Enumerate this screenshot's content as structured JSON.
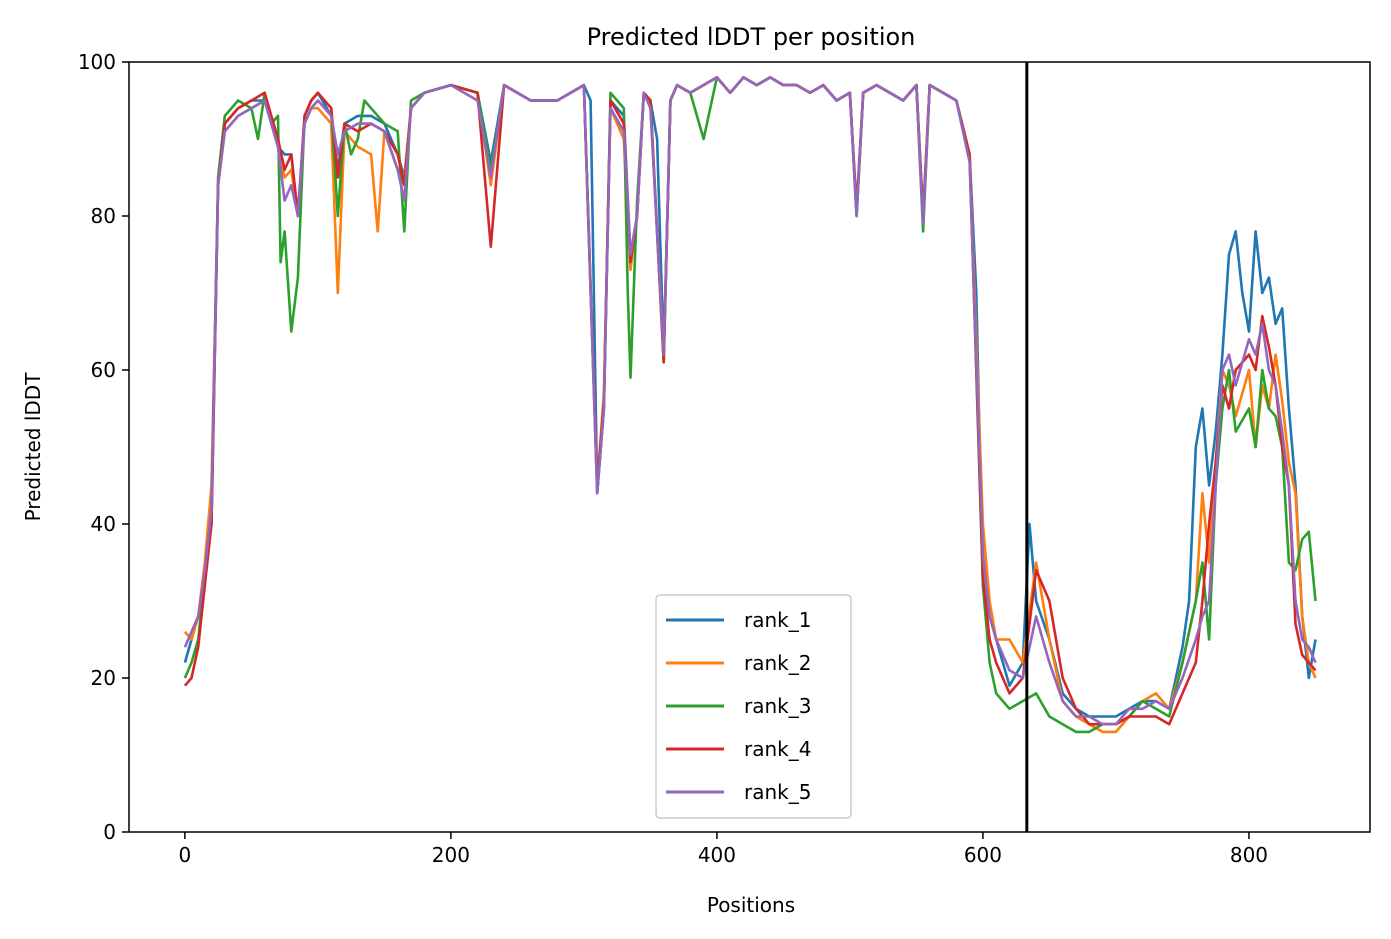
{
  "chart_data": {
    "type": "line",
    "title": "Predicted lDDT per position",
    "xlabel": "Positions",
    "ylabel": "Predicted lDDT",
    "xlim": [
      -42,
      891
    ],
    "ylim": [
      0,
      100
    ],
    "xticks": [
      0,
      200,
      400,
      600,
      800
    ],
    "yticks": [
      0,
      20,
      40,
      60,
      80,
      100
    ],
    "grid": false,
    "legend_position": "lower center",
    "vertical_line_x": 633,
    "series": [
      {
        "name": "rank_1",
        "color": "#1f77b4",
        "x": [
          0,
          5,
          10,
          15,
          20,
          25,
          30,
          40,
          50,
          60,
          70,
          75,
          80,
          85,
          90,
          95,
          100,
          110,
          115,
          120,
          130,
          140,
          150,
          160,
          165,
          170,
          180,
          200,
          220,
          230,
          240,
          260,
          280,
          300,
          305,
          310,
          315,
          320,
          330,
          335,
          340,
          345,
          350,
          355,
          360,
          365,
          370,
          380,
          400,
          410,
          420,
          430,
          440,
          450,
          460,
          470,
          480,
          490,
          500,
          505,
          510,
          520,
          530,
          540,
          550,
          555,
          560,
          570,
          580,
          590,
          595,
          600,
          605,
          610,
          620,
          630,
          635,
          640,
          650,
          660,
          670,
          680,
          690,
          700,
          710,
          720,
          730,
          740,
          750,
          755,
          760,
          765,
          770,
          775,
          780,
          785,
          790,
          795,
          800,
          805,
          810,
          815,
          820,
          825,
          830,
          835,
          840,
          845,
          850
        ],
        "y": [
          22,
          25,
          28,
          33,
          40,
          84,
          92,
          94,
          95,
          95,
          89,
          88,
          88,
          80,
          93,
          95,
          96,
          93,
          86,
          92,
          93,
          93,
          92,
          88,
          85,
          94,
          96,
          97,
          96,
          87,
          97,
          95,
          95,
          97,
          95,
          44,
          55,
          95,
          93,
          75,
          80,
          96,
          95,
          90,
          62,
          95,
          97,
          96,
          98,
          96,
          98,
          97,
          98,
          97,
          97,
          96,
          97,
          95,
          96,
          80,
          96,
          97,
          96,
          95,
          97,
          80,
          97,
          96,
          95,
          88,
          70,
          32,
          28,
          25,
          19,
          22,
          40,
          30,
          25,
          18,
          16,
          15,
          15,
          15,
          16,
          17,
          17,
          16,
          24,
          30,
          50,
          55,
          45,
          52,
          62,
          75,
          78,
          70,
          65,
          78,
          70,
          72,
          66,
          68,
          55,
          45,
          28,
          20,
          25
        ]
      },
      {
        "name": "rank_2",
        "color": "#ff7f0e",
        "x": [
          0,
          5,
          10,
          15,
          20,
          25,
          30,
          40,
          50,
          60,
          70,
          75,
          80,
          85,
          90,
          95,
          100,
          110,
          115,
          120,
          130,
          140,
          145,
          150,
          160,
          165,
          170,
          180,
          200,
          220,
          230,
          240,
          260,
          280,
          300,
          310,
          315,
          320,
          330,
          335,
          340,
          345,
          350,
          360,
          365,
          370,
          380,
          400,
          410,
          420,
          430,
          440,
          450,
          460,
          470,
          480,
          490,
          500,
          505,
          510,
          520,
          530,
          540,
          550,
          555,
          560,
          570,
          580,
          590,
          600,
          605,
          610,
          620,
          630,
          640,
          650,
          660,
          670,
          680,
          690,
          700,
          710,
          720,
          730,
          740,
          750,
          760,
          765,
          770,
          775,
          780,
          785,
          790,
          800,
          805,
          810,
          815,
          820,
          825,
          830,
          835,
          840,
          845,
          850
        ],
        "y": [
          26,
          25,
          28,
          35,
          45,
          84,
          91,
          93,
          94,
          95,
          89,
          85,
          86,
          80,
          92,
          94,
          94,
          92,
          70,
          91,
          89,
          88,
          78,
          91,
          86,
          85,
          94,
          96,
          97,
          96,
          84,
          97,
          95,
          95,
          97,
          45,
          57,
          94,
          90,
          73,
          80,
          96,
          95,
          62,
          95,
          97,
          96,
          98,
          96,
          98,
          97,
          98,
          97,
          97,
          96,
          97,
          95,
          96,
          81,
          96,
          97,
          96,
          95,
          97,
          80,
          97,
          96,
          95,
          88,
          40,
          30,
          25,
          25,
          22,
          35,
          25,
          17,
          15,
          14,
          13,
          13,
          15,
          17,
          18,
          16,
          22,
          30,
          44,
          35,
          48,
          60,
          58,
          54,
          60,
          50,
          58,
          55,
          62,
          56,
          48,
          44,
          28,
          22,
          20
        ]
      },
      {
        "name": "rank_3",
        "color": "#2ca02c",
        "x": [
          0,
          5,
          10,
          15,
          20,
          25,
          30,
          40,
          50,
          55,
          60,
          65,
          70,
          72,
          75,
          80,
          85,
          90,
          95,
          100,
          110,
          115,
          120,
          125,
          130,
          135,
          140,
          150,
          160,
          165,
          170,
          180,
          200,
          220,
          230,
          240,
          260,
          280,
          300,
          310,
          315,
          320,
          330,
          333,
          335,
          340,
          345,
          350,
          360,
          365,
          370,
          380,
          390,
          400,
          410,
          420,
          430,
          440,
          450,
          460,
          470,
          480,
          490,
          500,
          505,
          510,
          520,
          530,
          540,
          550,
          555,
          560,
          570,
          580,
          590,
          600,
          605,
          610,
          620,
          630,
          640,
          650,
          660,
          670,
          680,
          690,
          700,
          710,
          720,
          730,
          740,
          750,
          760,
          765,
          770,
          775,
          780,
          785,
          790,
          800,
          805,
          810,
          815,
          820,
          825,
          830,
          835,
          840,
          845,
          850
        ],
        "y": [
          20,
          22,
          25,
          33,
          42,
          85,
          93,
          95,
          94,
          90,
          96,
          92,
          93,
          74,
          78,
          65,
          72,
          93,
          95,
          96,
          94,
          80,
          92,
          88,
          90,
          95,
          94,
          92,
          91,
          78,
          95,
          96,
          97,
          96,
          86,
          97,
          95,
          95,
          97,
          44,
          55,
          96,
          94,
          70,
          59,
          82,
          96,
          95,
          61,
          95,
          97,
          96,
          90,
          98,
          96,
          98,
          97,
          98,
          97,
          97,
          96,
          97,
          95,
          96,
          80,
          96,
          97,
          96,
          95,
          97,
          78,
          97,
          96,
          95,
          88,
          32,
          22,
          18,
          16,
          17,
          18,
          15,
          14,
          13,
          13,
          14,
          14,
          15,
          17,
          16,
          15,
          22,
          30,
          35,
          25,
          45,
          55,
          60,
          52,
          55,
          50,
          60,
          55,
          54,
          50,
          35,
          34,
          38,
          39,
          30
        ]
      },
      {
        "name": "rank_4",
        "color": "#d62728",
        "x": [
          0,
          5,
          10,
          15,
          20,
          25,
          30,
          40,
          50,
          60,
          70,
          75,
          80,
          85,
          90,
          95,
          100,
          110,
          115,
          120,
          130,
          140,
          150,
          160,
          165,
          170,
          180,
          200,
          220,
          230,
          240,
          260,
          280,
          300,
          310,
          315,
          320,
          330,
          335,
          340,
          345,
          350,
          360,
          365,
          370,
          380,
          400,
          410,
          420,
          430,
          440,
          450,
          460,
          470,
          480,
          490,
          500,
          505,
          510,
          520,
          530,
          540,
          550,
          555,
          560,
          570,
          580,
          590,
          600,
          605,
          610,
          620,
          630,
          640,
          645,
          650,
          660,
          670,
          680,
          690,
          700,
          710,
          720,
          730,
          740,
          750,
          760,
          765,
          770,
          775,
          780,
          785,
          790,
          800,
          805,
          810,
          815,
          820,
          825,
          830,
          835,
          840,
          845,
          850
        ],
        "y": [
          19,
          20,
          24,
          32,
          40,
          84,
          92,
          94,
          95,
          96,
          90,
          86,
          88,
          80,
          93,
          95,
          96,
          94,
          85,
          92,
          91,
          92,
          91,
          88,
          84,
          94,
          96,
          97,
          96,
          76,
          97,
          95,
          95,
          97,
          45,
          56,
          95,
          92,
          74,
          80,
          96,
          95,
          61,
          95,
          97,
          96,
          98,
          96,
          98,
          97,
          98,
          97,
          97,
          96,
          97,
          95,
          96,
          81,
          96,
          97,
          96,
          95,
          97,
          80,
          97,
          96,
          95,
          88,
          33,
          25,
          22,
          18,
          20,
          34,
          32,
          30,
          20,
          16,
          14,
          14,
          14,
          15,
          15,
          15,
          14,
          18,
          22,
          30,
          40,
          48,
          58,
          55,
          60,
          62,
          60,
          67,
          63,
          58,
          50,
          45,
          27,
          23,
          22,
          21
        ]
      },
      {
        "name": "rank_5",
        "color": "#9467bd",
        "x": [
          0,
          5,
          10,
          15,
          20,
          25,
          30,
          40,
          50,
          60,
          70,
          75,
          80,
          85,
          90,
          95,
          100,
          110,
          115,
          120,
          130,
          140,
          150,
          160,
          165,
          170,
          180,
          200,
          220,
          230,
          240,
          260,
          280,
          300,
          310,
          315,
          320,
          330,
          335,
          340,
          345,
          350,
          360,
          365,
          370,
          380,
          400,
          410,
          420,
          430,
          440,
          450,
          460,
          470,
          480,
          490,
          500,
          505,
          510,
          520,
          530,
          540,
          550,
          555,
          560,
          570,
          580,
          590,
          600,
          605,
          610,
          620,
          630,
          635,
          640,
          650,
          660,
          670,
          680,
          690,
          700,
          710,
          720,
          730,
          740,
          750,
          760,
          765,
          770,
          775,
          780,
          785,
          790,
          800,
          805,
          810,
          815,
          820,
          825,
          830,
          835,
          840,
          845,
          850
        ],
        "y": [
          24,
          26,
          28,
          34,
          42,
          84,
          91,
          93,
          94,
          95,
          89,
          82,
          84,
          80,
          92,
          94,
          95,
          93,
          88,
          91,
          92,
          92,
          91,
          86,
          82,
          94,
          96,
          97,
          95,
          85,
          97,
          95,
          95,
          97,
          44,
          55,
          94,
          91,
          75,
          80,
          96,
          94,
          62,
          95,
          97,
          96,
          98,
          96,
          98,
          97,
          98,
          97,
          97,
          96,
          97,
          95,
          96,
          80,
          96,
          97,
          96,
          95,
          97,
          79,
          97,
          96,
          95,
          87,
          36,
          28,
          25,
          21,
          20,
          24,
          28,
          22,
          17,
          15,
          15,
          14,
          14,
          16,
          16,
          17,
          16,
          20,
          25,
          28,
          30,
          45,
          60,
          62,
          58,
          64,
          62,
          66,
          60,
          58,
          52,
          45,
          30,
          25,
          24,
          22
        ]
      }
    ]
  }
}
